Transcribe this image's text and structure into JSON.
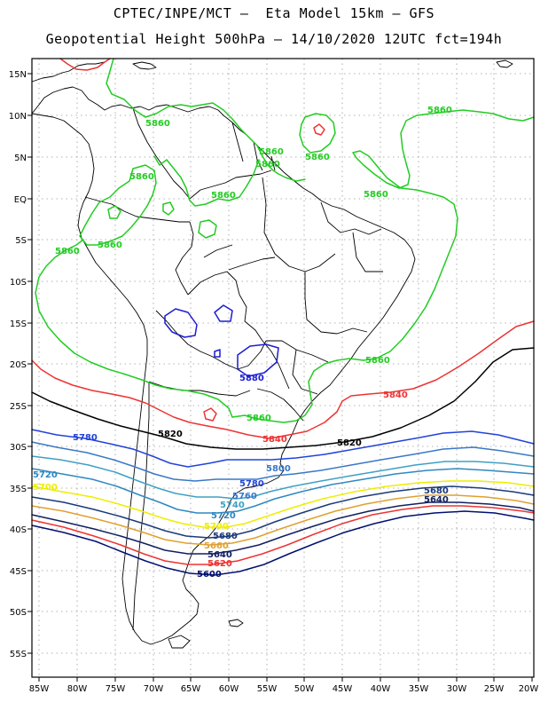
{
  "header": {
    "line1": "CPTEC/INPE/MCT –  Eta Model 15km – GFS",
    "line2": "Geopotential Height 500hPa – 14/10/2020 12UTC fct=194h"
  },
  "axes": {
    "lat_ticks": [
      "15N",
      "10N",
      "5N",
      "EQ",
      "5S",
      "10S",
      "15S",
      "20S",
      "25S",
      "30S",
      "35S",
      "40S",
      "45S",
      "50S",
      "55S"
    ],
    "lon_ticks": [
      "85W",
      "80W",
      "75W",
      "70W",
      "65W",
      "60W",
      "55W",
      "50W",
      "45W",
      "40W",
      "35W",
      "30W",
      "25W",
      "20W"
    ],
    "lat_range": [
      15,
      -55
    ],
    "lon_range": [
      -85,
      -20
    ],
    "grid": "dotted"
  },
  "colors": {
    "5880": "#1c1cd4",
    "5860": "#22cc22",
    "5840": "#ee3333",
    "5820": "#000000",
    "5780": "#2243d8",
    "5760": "#3a78c8",
    "5740": "#3fa0c4",
    "5720": "#2f88c0",
    "5700": "#eeee00",
    "5680": "#1a3a7a",
    "5660": "#e0a030",
    "5640": "#102060",
    "5620": "#ee3333",
    "5600": "#001070"
  },
  "contour_labels": [
    {
      "text": "5860"
    },
    {
      "text": "5860"
    },
    {
      "text": "5860"
    },
    {
      "text": "5860"
    },
    {
      "text": "5860"
    },
    {
      "text": "5860"
    },
    {
      "text": "5860"
    },
    {
      "text": "5860"
    },
    {
      "text": "5860"
    },
    {
      "text": "5860"
    },
    {
      "text": "5860"
    },
    {
      "text": "5880"
    },
    {
      "text": "5840"
    },
    {
      "text": "5840"
    },
    {
      "text": "5820"
    },
    {
      "text": "5820"
    },
    {
      "text": "5780"
    },
    {
      "text": "5800"
    },
    {
      "text": "5780"
    },
    {
      "text": "5720"
    },
    {
      "text": "5700"
    },
    {
      "text": "5760"
    },
    {
      "text": "5740"
    },
    {
      "text": "5720"
    },
    {
      "text": "5700"
    },
    {
      "text": "5680"
    },
    {
      "text": "5660"
    },
    {
      "text": "5640"
    },
    {
      "text": "5620"
    },
    {
      "text": "5600"
    },
    {
      "text": "5680"
    },
    {
      "text": "5640"
    }
  ]
}
